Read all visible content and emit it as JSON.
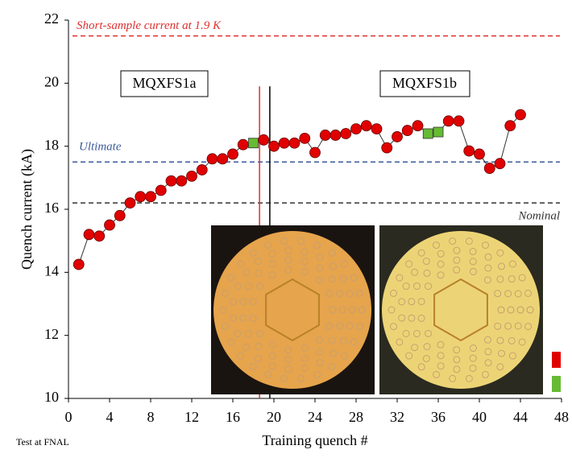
{
  "chart_data": {
    "type": "line",
    "x_label": "Training quench #",
    "y_label": "Quench current (kA)",
    "footnote": "Test at FNAL",
    "x": [
      1,
      2,
      3,
      4,
      5,
      6,
      7,
      8,
      9,
      10,
      11,
      12,
      13,
      14,
      15,
      16,
      17,
      18,
      19,
      20,
      21,
      22,
      23,
      24,
      25,
      26,
      27,
      28,
      29,
      30,
      31,
      32,
      33,
      34,
      35,
      36,
      37,
      38,
      39,
      40,
      41,
      42,
      43,
      44
    ],
    "series": [
      {
        "color": "#333333",
        "values": [
          14.25,
          15.2,
          15.15,
          15.5,
          15.8,
          16.2,
          16.4,
          16.4,
          16.6,
          16.9,
          16.9,
          17.05,
          17.25,
          17.6,
          17.6,
          17.75,
          18.05,
          18.1,
          18.2,
          18.0,
          18.1,
          18.1,
          18.25,
          17.8,
          18.35,
          18.35,
          18.4,
          18.55,
          18.65,
          18.55,
          17.95,
          18.3,
          18.5,
          18.65,
          18.4,
          18.45,
          18.8,
          18.8,
          17.85,
          17.75,
          17.3,
          17.45,
          18.65,
          19.0
        ],
        "marker_colors": [
          "#e00000",
          "#e00000",
          "#e00000",
          "#e00000",
          "#e00000",
          "#e00000",
          "#e00000",
          "#e00000",
          "#e00000",
          "#e00000",
          "#e00000",
          "#e00000",
          "#e00000",
          "#e00000",
          "#e00000",
          "#e00000",
          "#e00000",
          "#66bb33",
          "#e00000",
          "#e00000",
          "#e00000",
          "#e00000",
          "#e00000",
          "#e00000",
          "#e00000",
          "#e00000",
          "#e00000",
          "#e00000",
          "#e00000",
          "#e00000",
          "#e00000",
          "#e00000",
          "#e00000",
          "#e00000",
          "#66bb33",
          "#66bb33",
          "#e00000",
          "#e00000",
          "#e00000",
          "#e00000",
          "#e00000",
          "#e00000",
          "#e00000",
          "#e00000"
        ]
      }
    ],
    "hlines": [
      {
        "y": 21.5,
        "color": "#e03030",
        "label": "Short-sample current at 1.9 K"
      },
      {
        "y": 17.5,
        "color": "#3a5a9a",
        "label": "Ultimate"
      },
      {
        "y": 16.2,
        "color": "#333333",
        "label": "Nominal"
      }
    ],
    "vlines": [
      {
        "x": 18.6,
        "color": "#e03030"
      },
      {
        "x": 19.6,
        "color": "#000000"
      }
    ],
    "vline_top": 19.9,
    "magnet_labels": [
      "MQXFS1a",
      "MQXFS1b"
    ],
    "xlim": [
      0,
      48
    ],
    "xticks": [
      0,
      4,
      8,
      12,
      16,
      20,
      24,
      28,
      32,
      36,
      40,
      44,
      48
    ],
    "ylim": [
      10,
      22
    ],
    "yticks": [
      10,
      12,
      14,
      16,
      18,
      20,
      22
    ]
  }
}
